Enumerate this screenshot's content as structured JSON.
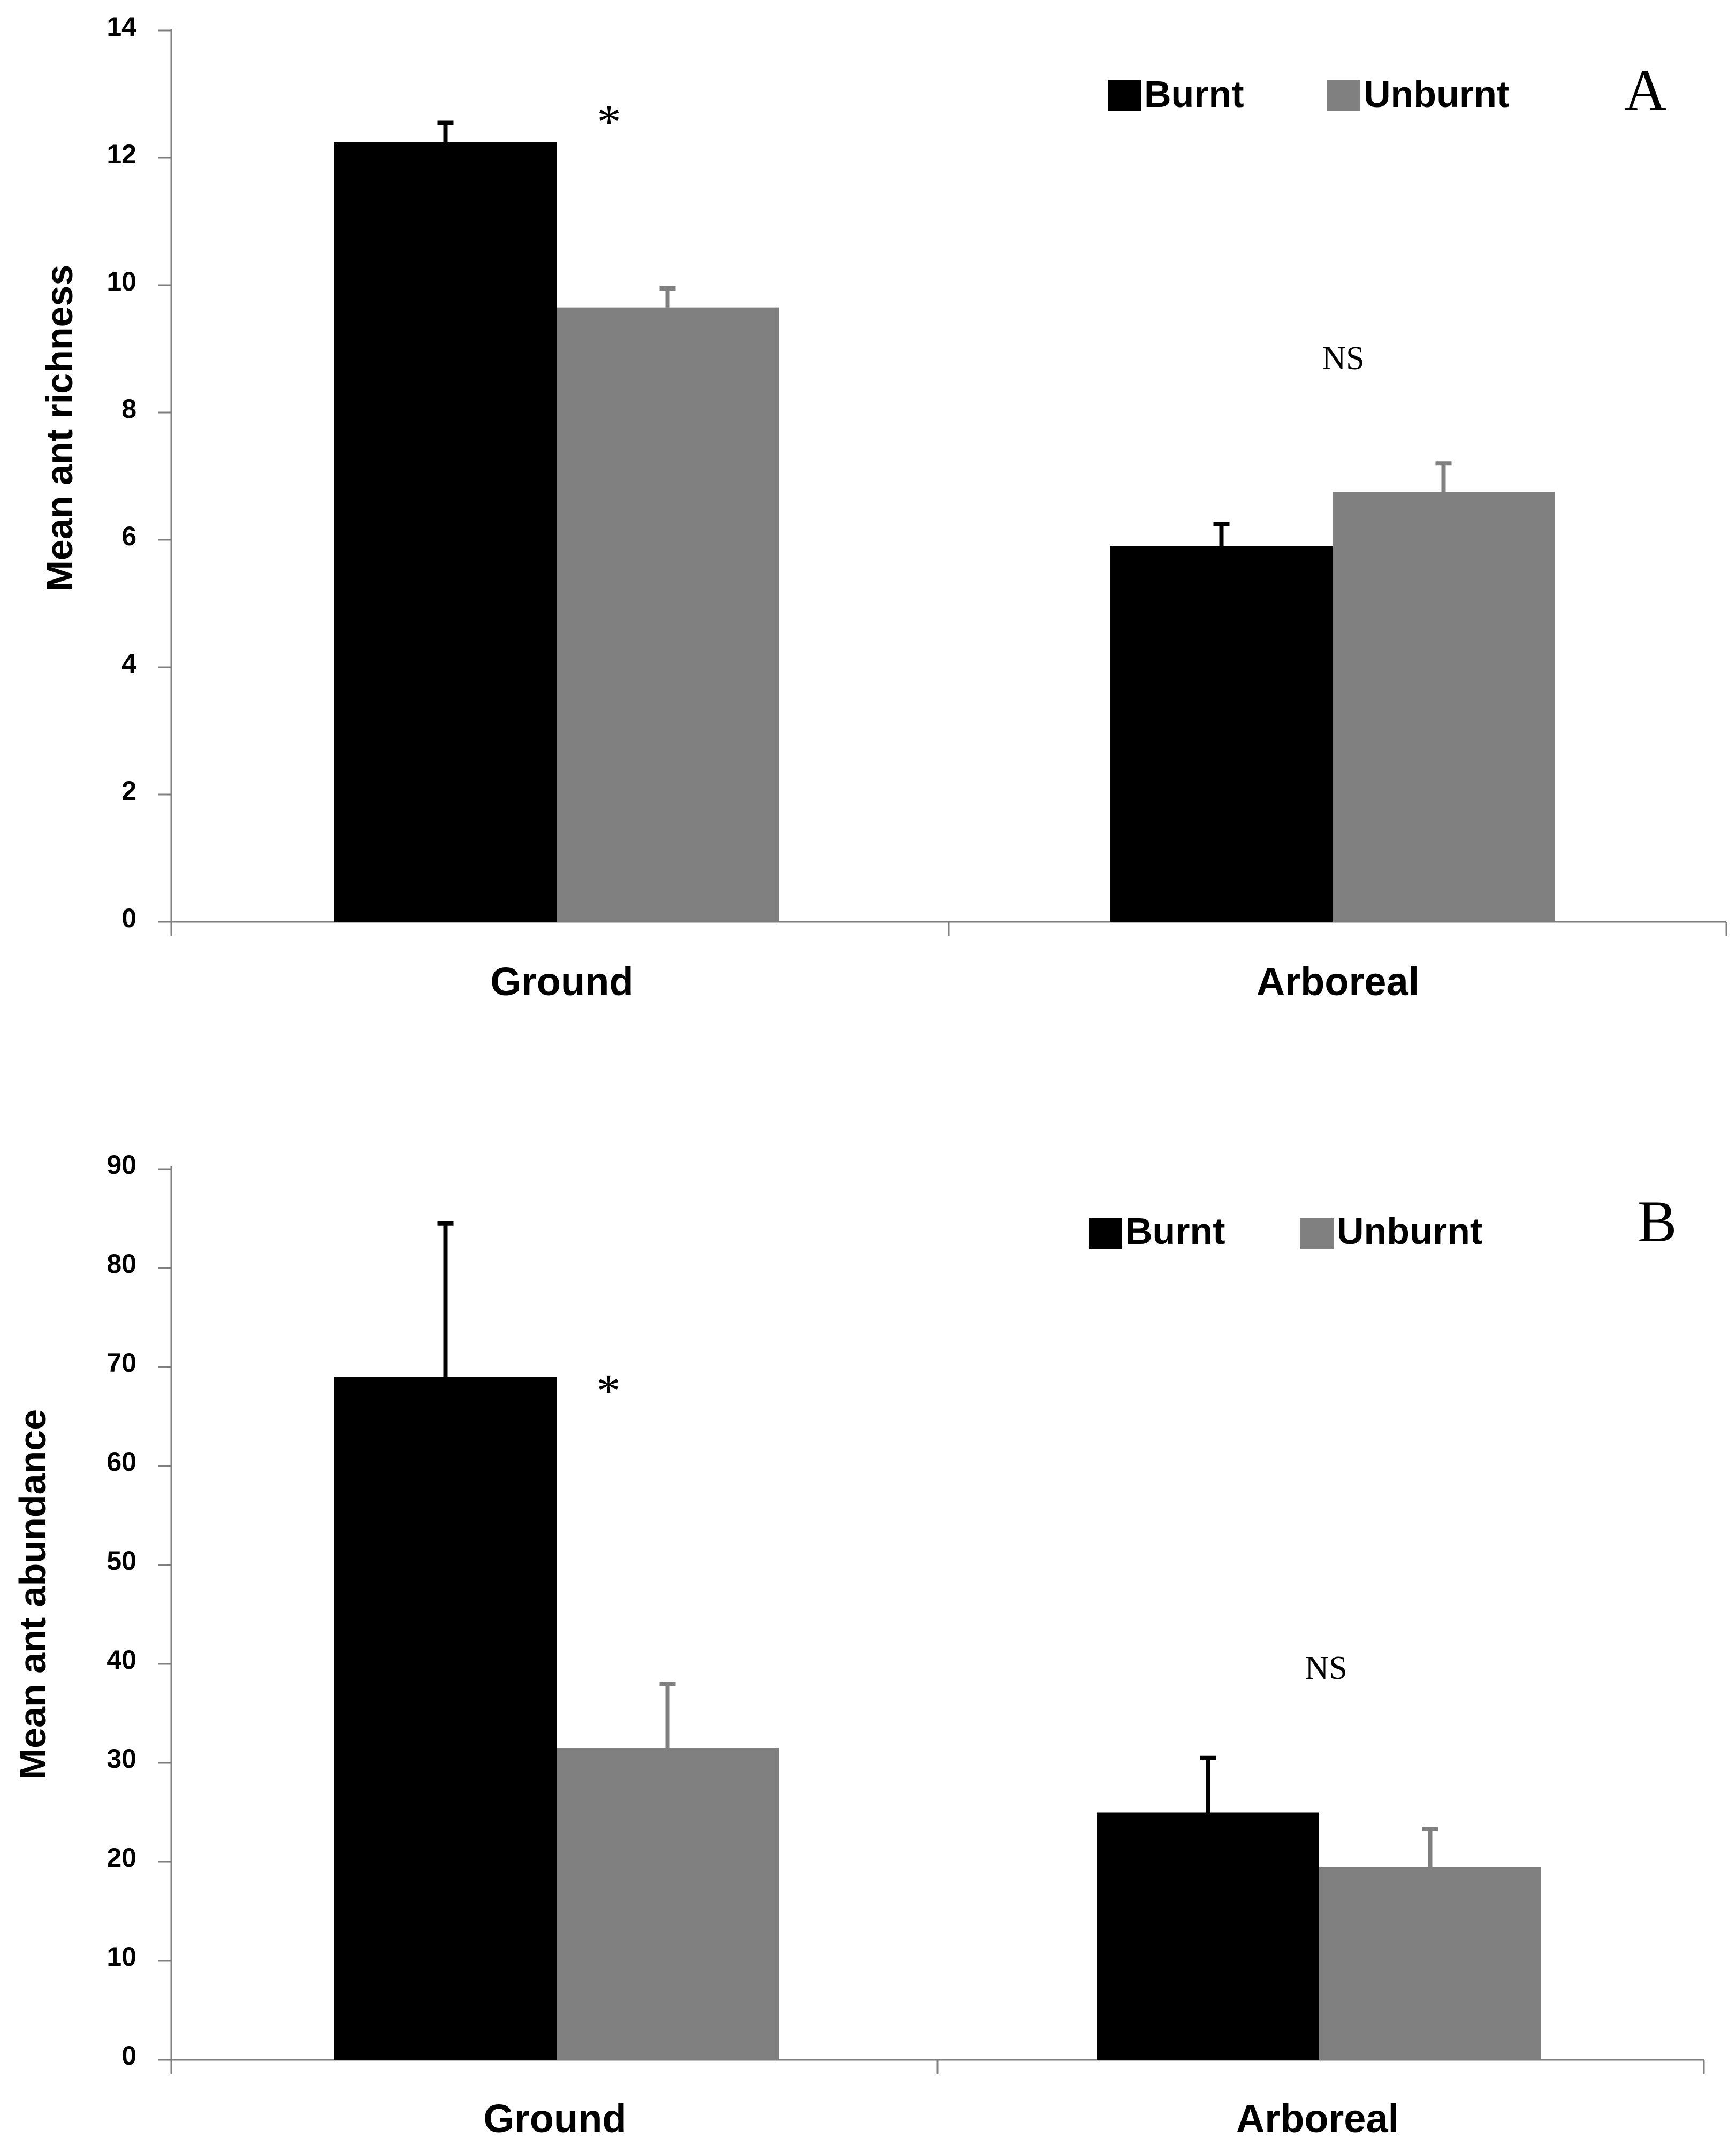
{
  "colors": {
    "Burnt": "#000000",
    "Unburnt": "#808080"
  },
  "chart_data": [
    {
      "type": "bar",
      "panel_label": "A",
      "title": "",
      "xlabel": "",
      "ylabel": "Mean ant richness",
      "categories": [
        "Ground",
        "Arboreal"
      ],
      "series": [
        {
          "name": "Burnt",
          "values": [
            12.25,
            5.9
          ],
          "errors": [
            0.3,
            0.35
          ]
        },
        {
          "name": "Unburnt",
          "values": [
            9.65,
            6.75
          ],
          "errors": [
            0.3,
            0.45
          ]
        }
      ],
      "ylim": [
        0,
        14
      ],
      "yticks": [
        "0",
        "2",
        "4",
        "6",
        "8",
        "10",
        "12",
        "14"
      ],
      "annotations": [
        "*",
        "NS"
      ],
      "legend_position": "top-right"
    },
    {
      "type": "bar",
      "panel_label": "B",
      "title": "",
      "xlabel": "",
      "ylabel": "Mean ant abundance",
      "categories": [
        "Ground",
        "Arboreal"
      ],
      "series": [
        {
          "name": "Burnt",
          "values": [
            69,
            25
          ],
          "errors": [
            15.5,
            5.5
          ]
        },
        {
          "name": "Unburnt",
          "values": [
            31.5,
            19.5
          ],
          "errors": [
            6.5,
            3.8
          ]
        }
      ],
      "ylim": [
        0,
        90
      ],
      "yticks": [
        "0",
        "10",
        "20",
        "30",
        "40",
        "50",
        "60",
        "70",
        "80",
        "90"
      ],
      "annotations": [
        "*",
        "NS"
      ],
      "legend_position": "top-right"
    }
  ]
}
